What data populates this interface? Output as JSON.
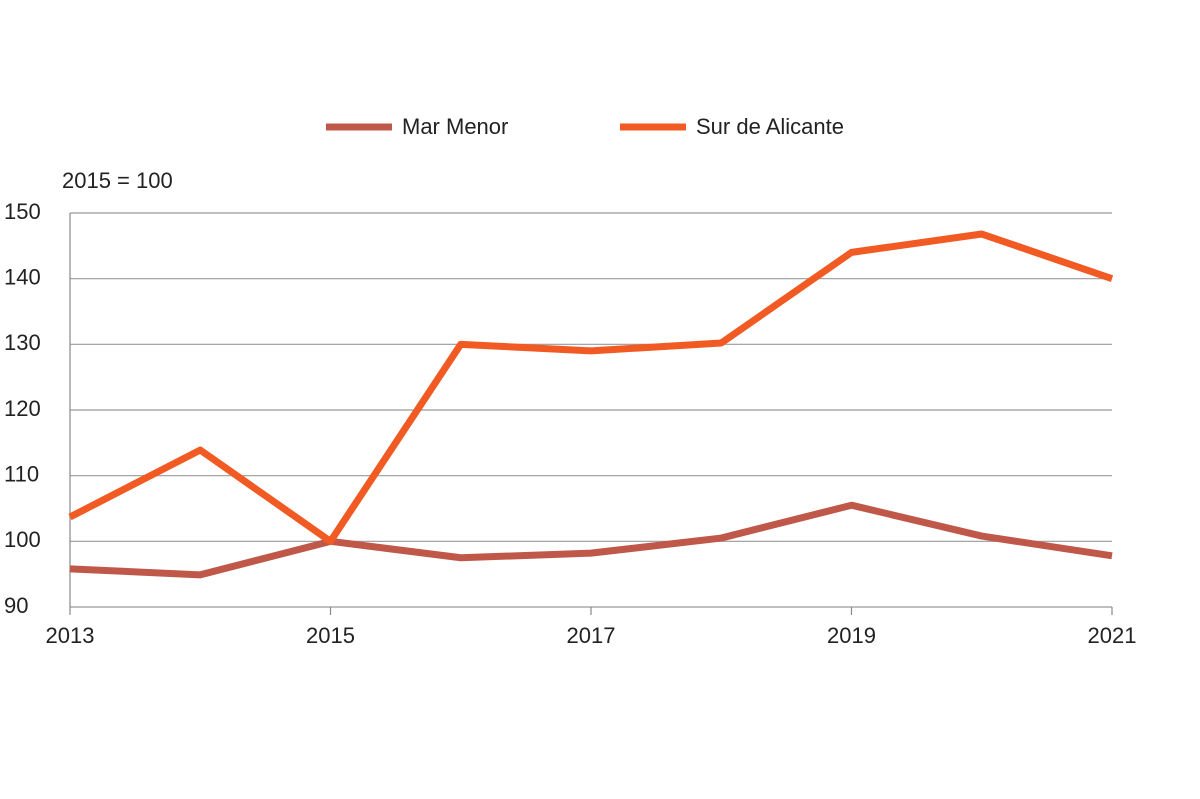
{
  "chart_data": {
    "type": "line",
    "subtitle": "2015 = 100",
    "x": [
      2013,
      2014,
      2015,
      2016,
      2017,
      2018,
      2019,
      2020,
      2021
    ],
    "series": [
      {
        "name": "Mar Menor",
        "color": "#c0584a",
        "values": [
          95.8,
          94.9,
          100,
          97.5,
          98.2,
          100.5,
          105.5,
          100.8,
          97.8
        ]
      },
      {
        "name": "Sur de Alicante",
        "color": "#f15a22",
        "values": [
          103.7,
          113.9,
          100,
          130,
          129,
          130.2,
          144,
          146.8,
          140
        ]
      }
    ],
    "xlim": [
      2013,
      2021
    ],
    "xticks": [
      2013,
      2015,
      2017,
      2019,
      2021
    ],
    "ylim": [
      90,
      150
    ],
    "yticks": [
      90,
      100,
      110,
      120,
      130,
      140,
      150
    ],
    "grid": true,
    "legend": "top"
  }
}
